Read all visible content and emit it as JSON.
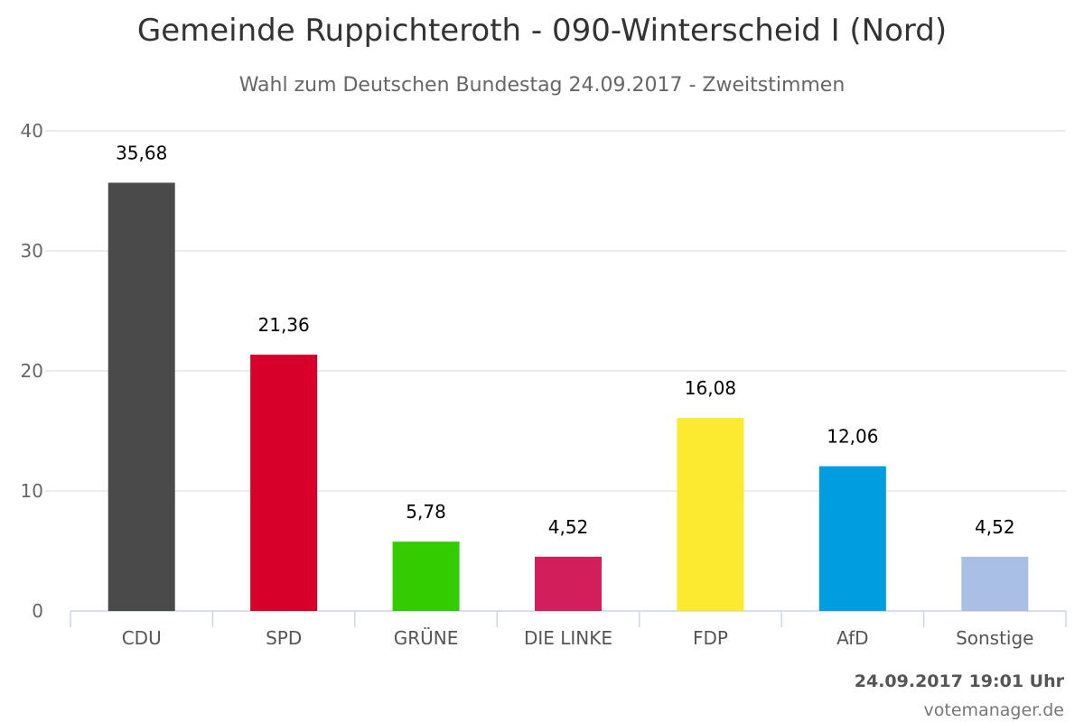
{
  "title": "Gemeinde Ruppichteroth - 090-Winterscheid I (Nord)",
  "subtitle": "Wahl zum Deutschen Bundestag 24.09.2017 - Zweitstimmen",
  "timestamp": "24.09.2017 19:01 Uhr",
  "credits": "votemanager.de",
  "chart_data": {
    "type": "bar",
    "title": "Gemeinde Ruppichteroth - 090-Winterscheid I (Nord)",
    "subtitle": "Wahl zum Deutschen Bundestag 24.09.2017 - Zweitstimmen",
    "xlabel": "",
    "ylabel": "",
    "categories": [
      "CDU",
      "SPD",
      "GRÜNE",
      "DIE LINKE",
      "FDP",
      "AfD",
      "Sonstige"
    ],
    "values": [
      35.68,
      21.36,
      5.78,
      4.52,
      16.08,
      12.06,
      4.52
    ],
    "value_labels": [
      "35,68",
      "21,36",
      "5,78",
      "4,52",
      "16,08",
      "12,06",
      "4,52"
    ],
    "colors": [
      "#4a4a4a",
      "#d7002a",
      "#33cc00",
      "#d21e5a",
      "#fbea2f",
      "#009ee0",
      "#aabfe6"
    ],
    "ylim": [
      0,
      40
    ],
    "yticks": [
      0,
      10,
      20,
      30,
      40
    ],
    "grid": true,
    "legend": "none"
  }
}
